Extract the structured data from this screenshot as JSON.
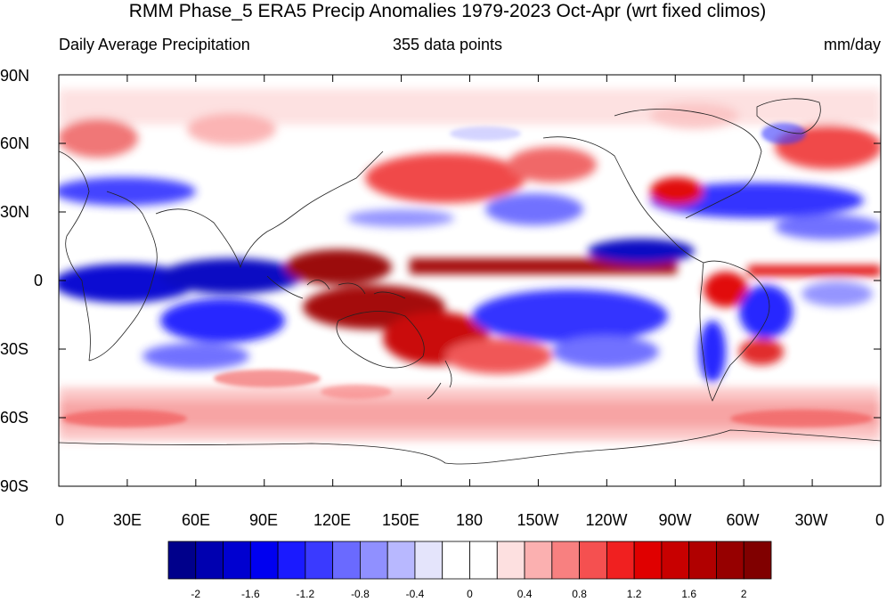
{
  "title": "RMM Phase_5 ERA5 Precip Anomalies 1979-2023 Oct-Apr (wrt fixed climos)",
  "left_label": "Daily Average Precipitation",
  "center_label": "355 data points",
  "right_label": "mm/day",
  "lat_labels": [
    "90N",
    "60N",
    "30N",
    "0",
    "30S",
    "60S",
    "90S"
  ],
  "lon_labels": [
    "0",
    "30E",
    "60E",
    "90E",
    "120E",
    "150E",
    "180",
    "150W",
    "120W",
    "90W",
    "60W",
    "30W",
    "0"
  ],
  "colorbar": {
    "colors": [
      "#00008b",
      "#0000b0",
      "#0000d0",
      "#0000f0",
      "#1a1aff",
      "#3a3aff",
      "#6a6aff",
      "#9090ff",
      "#b8b8ff",
      "#e4e4fb",
      "#ffffff",
      "#ffffff",
      "#fde0e0",
      "#fbb0b0",
      "#f88080",
      "#f55050",
      "#f02020",
      "#e00000",
      "#c80000",
      "#b00000",
      "#960000",
      "#800000"
    ],
    "tick_labels": [
      "-2",
      "-1.6",
      "-1.2",
      "-0.8",
      "-0.4",
      "0",
      "0.4",
      "0.8",
      "1.2",
      "1.6",
      "2"
    ]
  }
}
